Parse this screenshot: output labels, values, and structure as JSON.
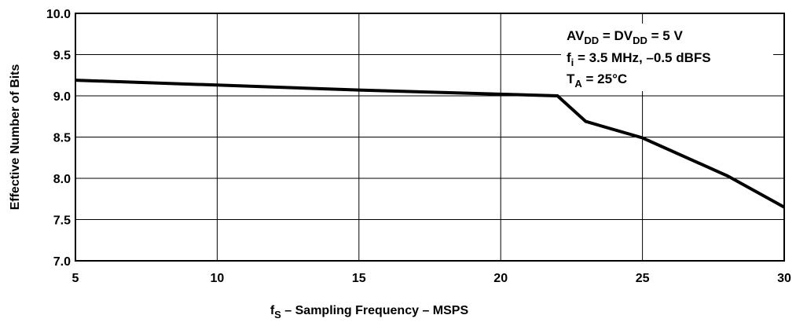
{
  "chart_data": {
    "type": "line",
    "xlabel": {
      "pre": "f",
      "sub": "S",
      "post": " – Sampling Frequency – MSPS"
    },
    "ylabel": "Effective Number of Bits",
    "xlim": [
      5,
      30
    ],
    "ylim": [
      7.0,
      10.0
    ],
    "xticks": [
      5,
      10,
      15,
      20,
      25,
      30
    ],
    "xtick_labels": [
      "5",
      "10",
      "15",
      "20",
      "25",
      "30"
    ],
    "yticks": [
      7.0,
      7.5,
      8.0,
      8.5,
      9.0,
      9.5,
      10.0
    ],
    "ytick_labels": [
      "7.0",
      "7.5",
      "8.0",
      "8.5",
      "9.0",
      "9.5",
      "10.0"
    ],
    "grid": true,
    "series": [
      {
        "x": [
          5,
          10,
          15,
          20,
          22,
          23,
          25,
          28,
          30
        ],
        "y": [
          9.19,
          9.13,
          9.07,
          9.02,
          9.0,
          8.69,
          8.49,
          8.03,
          7.65
        ]
      }
    ],
    "annotation": {
      "line1": {
        "a": "AV",
        "a_sub": "DD",
        "b": " = DV",
        "b_sub": "DD",
        "c": " = 5 V"
      },
      "line2": {
        "a": "f",
        "a_sub": "i",
        "b": " = 3.5 MHz, –0.5 dBFS"
      },
      "line3": {
        "a": "T",
        "a_sub": "A",
        "b": " = 25°C"
      }
    }
  }
}
